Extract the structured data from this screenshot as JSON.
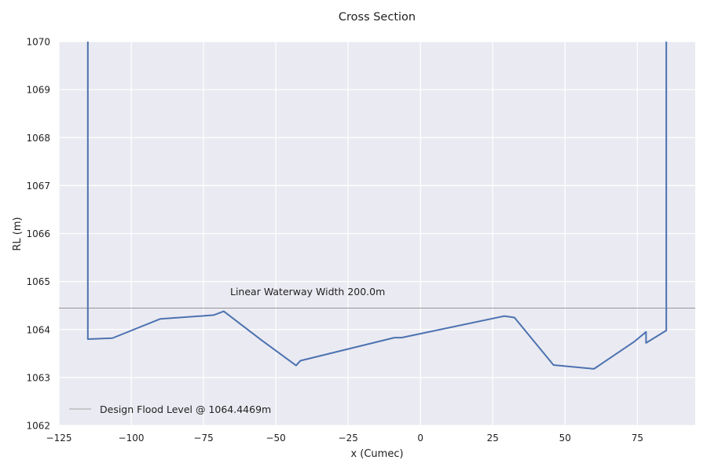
{
  "chart_data": {
    "type": "line",
    "title": "Cross Section",
    "xlabel": "x (Cumec)",
    "ylabel": "RL (m)",
    "xlim": [
      -125,
      95
    ],
    "ylim": [
      1062,
      1070
    ],
    "xticks": [
      -125,
      -100,
      -75,
      -50,
      -25,
      0,
      25,
      50,
      75
    ],
    "xtick_labels": [
      "−125",
      "−100",
      "−75",
      "−50",
      "−25",
      "0",
      "25",
      "50",
      "75"
    ],
    "yticks": [
      1062,
      1063,
      1064,
      1065,
      1066,
      1067,
      1068,
      1069,
      1070
    ],
    "ytick_labels": [
      "1062",
      "1063",
      "1064",
      "1065",
      "1066",
      "1067",
      "1068",
      "1069",
      "1070"
    ],
    "grid": true,
    "background": "#eaeaf2",
    "series": [
      {
        "color": "#4c72b0",
        "x": [
          -115,
          -115,
          -106.5,
          -90,
          -71.5,
          -68,
          -55,
          -43,
          -41.5,
          -9,
          -6.5,
          29,
          32.5,
          46,
          60,
          74,
          78,
          78,
          85,
          85
        ],
        "y": [
          1070,
          1063.8,
          1063.82,
          1064.22,
          1064.3,
          1064.38,
          1063.78,
          1063.25,
          1063.35,
          1063.83,
          1063.83,
          1064.28,
          1064.25,
          1063.26,
          1063.18,
          1063.75,
          1063.95,
          1063.72,
          1063.98,
          1070
        ]
      }
    ],
    "hlines": [
      {
        "name": "Design Flood Level @ 1064.4469m",
        "y": 1064.4469,
        "color": "#8a8a8a"
      }
    ],
    "annotations": [
      {
        "text": "Linear Waterway Width 200.0m",
        "x": -66,
        "y": 1064.7
      }
    ],
    "legend": {
      "placement": "lower-left"
    }
  }
}
